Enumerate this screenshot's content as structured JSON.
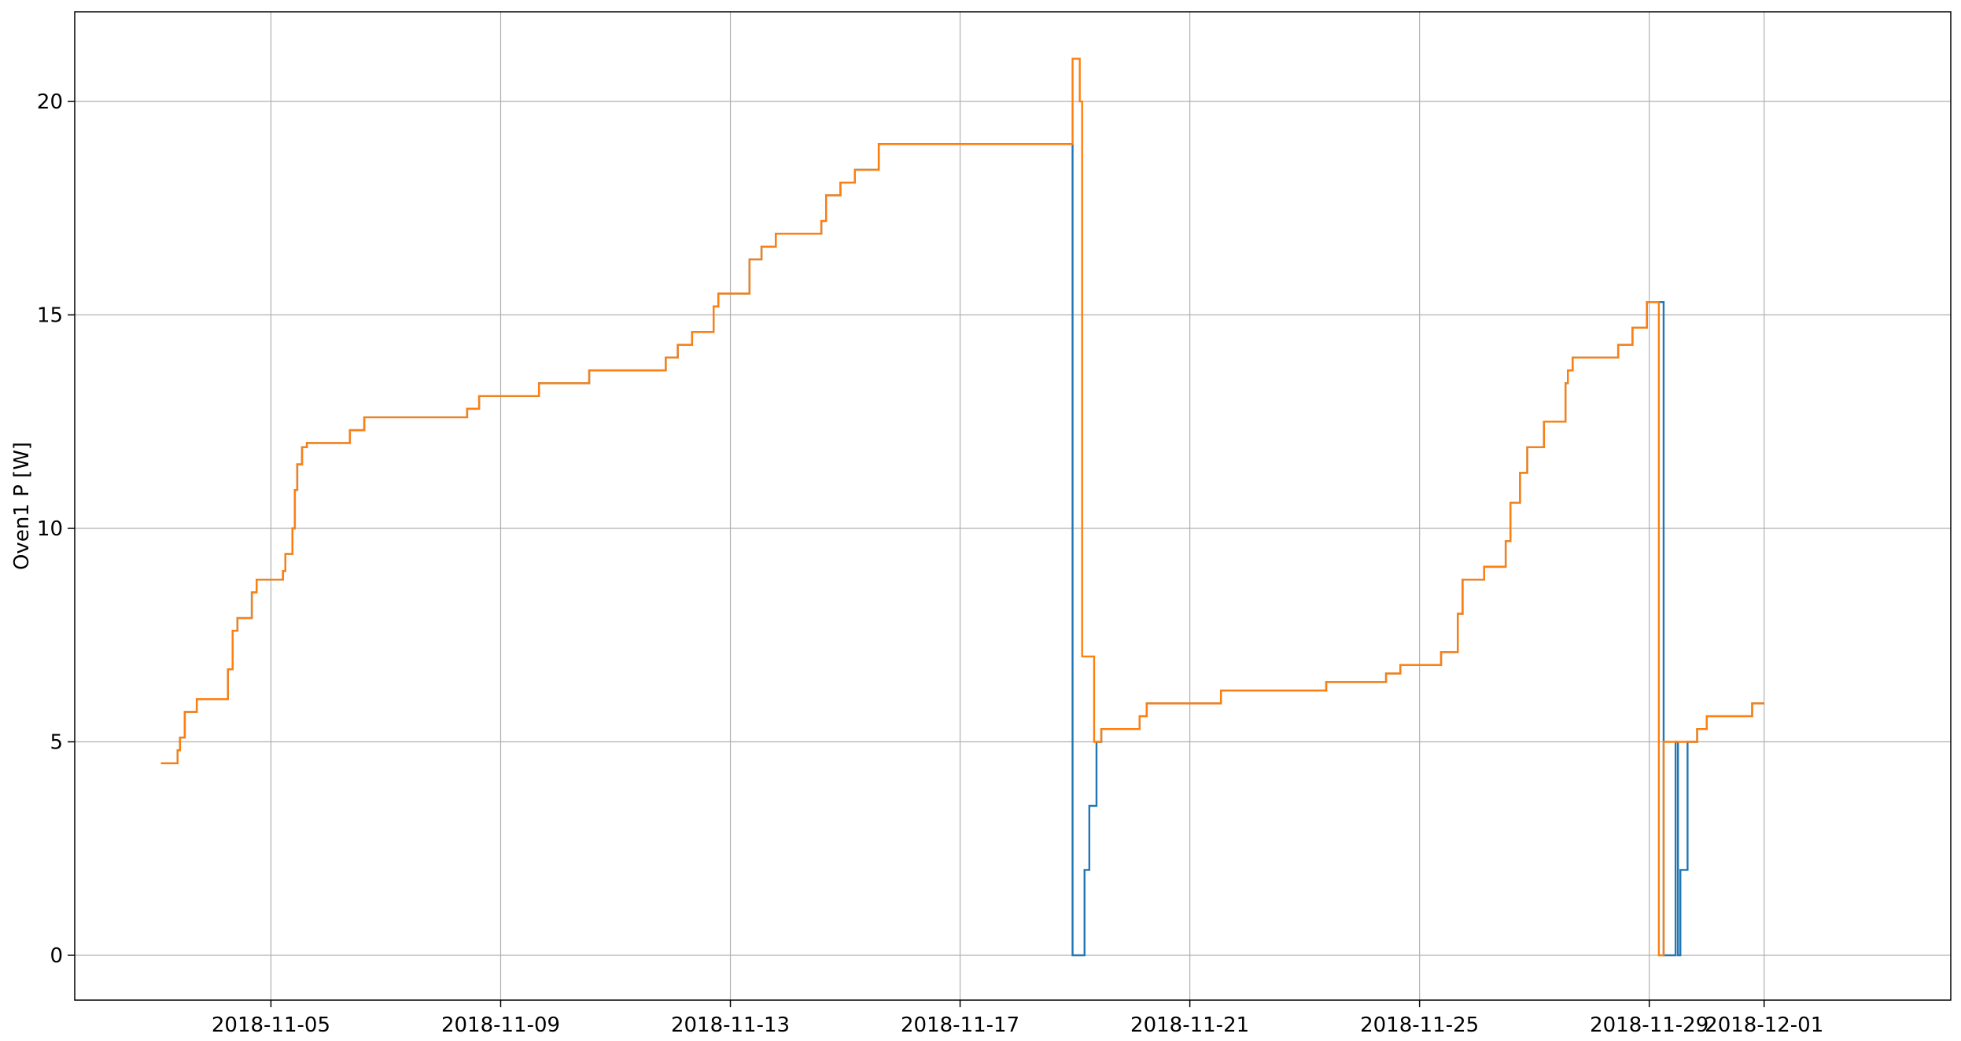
{
  "chart_data": {
    "type": "line",
    "title": "",
    "xlabel": "",
    "ylabel": "Oven1 P [W]",
    "x_axis_type": "date",
    "xlim": [
      "2018-11-01T14:00",
      "2018-12-04T06:00"
    ],
    "ylim": [
      -1.05,
      22.1
    ],
    "grid": true,
    "x_ticks": [
      "2018-11-05",
      "2018-11-09",
      "2018-11-13",
      "2018-11-17",
      "2018-11-21",
      "2018-11-25",
      "2018-11-29",
      "2018-12-01"
    ],
    "y_ticks": [
      0,
      5,
      10,
      15,
      20
    ],
    "series": [
      {
        "color": "#1f77b4",
        "step": true,
        "points": [
          [
            "2018-11-03T02:00",
            4.5
          ],
          [
            "2018-11-03T09:00",
            4.8
          ],
          [
            "2018-11-03T10:00",
            5.1
          ],
          [
            "2018-11-03T12:00",
            5.7
          ],
          [
            "2018-11-03T17:00",
            6.0
          ],
          [
            "2018-11-04T06:00",
            6.7
          ],
          [
            "2018-11-04T08:00",
            7.6
          ],
          [
            "2018-11-04T10:00",
            7.9
          ],
          [
            "2018-11-04T16:00",
            8.5
          ],
          [
            "2018-11-04T18:00",
            8.8
          ],
          [
            "2018-11-05T05:00",
            9.0
          ],
          [
            "2018-11-05T06:00",
            9.4
          ],
          [
            "2018-11-05T09:00",
            10.0
          ],
          [
            "2018-11-05T10:00",
            10.9
          ],
          [
            "2018-11-05T11:00",
            11.5
          ],
          [
            "2018-11-05T13:00",
            11.9
          ],
          [
            "2018-11-05T15:00",
            12.0
          ],
          [
            "2018-11-06T09:00",
            12.3
          ],
          [
            "2018-11-06T15:00",
            12.6
          ],
          [
            "2018-11-08T10:00",
            12.8
          ],
          [
            "2018-11-08T15:00",
            13.1
          ],
          [
            "2018-11-09T16:00",
            13.4
          ],
          [
            "2018-11-10T13:00",
            13.7
          ],
          [
            "2018-11-11T21:00",
            14.0
          ],
          [
            "2018-11-12T02:00",
            14.3
          ],
          [
            "2018-11-12T08:00",
            14.6
          ],
          [
            "2018-11-12T17:00",
            15.2
          ],
          [
            "2018-11-12T19:00",
            15.5
          ],
          [
            "2018-11-13T08:00",
            16.3
          ],
          [
            "2018-11-13T13:00",
            16.6
          ],
          [
            "2018-11-13T19:00",
            16.9
          ],
          [
            "2018-11-14T14:00",
            17.2
          ],
          [
            "2018-11-14T16:00",
            17.8
          ],
          [
            "2018-11-14T22:00",
            18.1
          ],
          [
            "2018-11-15T04:00",
            18.4
          ],
          [
            "2018-11-15T14:00",
            19.0
          ],
          [
            "2018-11-18T23:00",
            0.0
          ],
          [
            "2018-11-19T04:00",
            2.0
          ],
          [
            "2018-11-19T06:00",
            3.5
          ],
          [
            "2018-11-19T09:00",
            5.0
          ],
          [
            "2018-11-19T11:00",
            5.3
          ],
          [
            "2018-11-20T03:00",
            5.6
          ],
          [
            "2018-11-20T06:00",
            5.9
          ],
          [
            "2018-11-21T13:00",
            6.2
          ],
          [
            "2018-11-23T09:00",
            6.4
          ],
          [
            "2018-11-24T10:00",
            6.6
          ],
          [
            "2018-11-24T16:00",
            6.8
          ],
          [
            "2018-11-25T09:00",
            7.1
          ],
          [
            "2018-11-25T16:00",
            8.0
          ],
          [
            "2018-11-25T18:00",
            8.8
          ],
          [
            "2018-11-26T03:00",
            9.1
          ],
          [
            "2018-11-26T12:00",
            9.7
          ],
          [
            "2018-11-26T14:00",
            10.6
          ],
          [
            "2018-11-26T18:00",
            11.3
          ],
          [
            "2018-11-26T21:00",
            11.9
          ],
          [
            "2018-11-27T04:00",
            12.5
          ],
          [
            "2018-11-27T13:00",
            13.4
          ],
          [
            "2018-11-27T14:00",
            13.7
          ],
          [
            "2018-11-27T16:00",
            14.0
          ],
          [
            "2018-11-28T11:00",
            14.3
          ],
          [
            "2018-11-28T17:00",
            14.7
          ],
          [
            "2018-11-28T23:00",
            15.3
          ],
          [
            "2018-11-29T06:00",
            0.0
          ],
          [
            "2018-11-29T11:00",
            5.0
          ],
          [
            "2018-11-29T12:00",
            0.0
          ],
          [
            "2018-11-29T13:00",
            2.0
          ],
          [
            "2018-11-29T16:00",
            5.0
          ],
          [
            "2018-11-29T20:00",
            5.3
          ],
          [
            "2018-11-30T00:00",
            5.6
          ],
          [
            "2018-11-30T19:00",
            5.9
          ],
          [
            "2018-12-01T00:00",
            5.9
          ]
        ]
      },
      {
        "color": "#ff7f0e",
        "step": true,
        "points": [
          [
            "2018-11-03T02:00",
            4.5
          ],
          [
            "2018-11-03T09:00",
            4.8
          ],
          [
            "2018-11-03T10:00",
            5.1
          ],
          [
            "2018-11-03T12:00",
            5.7
          ],
          [
            "2018-11-03T17:00",
            6.0
          ],
          [
            "2018-11-04T06:00",
            6.7
          ],
          [
            "2018-11-04T08:00",
            7.6
          ],
          [
            "2018-11-04T10:00",
            7.9
          ],
          [
            "2018-11-04T16:00",
            8.5
          ],
          [
            "2018-11-04T18:00",
            8.8
          ],
          [
            "2018-11-05T05:00",
            9.0
          ],
          [
            "2018-11-05T06:00",
            9.4
          ],
          [
            "2018-11-05T09:00",
            10.0
          ],
          [
            "2018-11-05T10:00",
            10.9
          ],
          [
            "2018-11-05T11:00",
            11.5
          ],
          [
            "2018-11-05T13:00",
            11.9
          ],
          [
            "2018-11-05T15:00",
            12.0
          ],
          [
            "2018-11-06T09:00",
            12.3
          ],
          [
            "2018-11-06T15:00",
            12.6
          ],
          [
            "2018-11-08T10:00",
            12.8
          ],
          [
            "2018-11-08T15:00",
            13.1
          ],
          [
            "2018-11-09T16:00",
            13.4
          ],
          [
            "2018-11-10T13:00",
            13.7
          ],
          [
            "2018-11-11T21:00",
            14.0
          ],
          [
            "2018-11-12T02:00",
            14.3
          ],
          [
            "2018-11-12T08:00",
            14.6
          ],
          [
            "2018-11-12T17:00",
            15.2
          ],
          [
            "2018-11-12T19:00",
            15.5
          ],
          [
            "2018-11-13T08:00",
            16.3
          ],
          [
            "2018-11-13T13:00",
            16.6
          ],
          [
            "2018-11-13T19:00",
            16.9
          ],
          [
            "2018-11-14T14:00",
            17.2
          ],
          [
            "2018-11-14T16:00",
            17.8
          ],
          [
            "2018-11-14T22:00",
            18.1
          ],
          [
            "2018-11-15T04:00",
            18.4
          ],
          [
            "2018-11-15T14:00",
            19.0
          ],
          [
            "2018-11-18T23:00",
            21.0
          ],
          [
            "2018-11-19T02:00",
            20.0
          ],
          [
            "2018-11-19T03:00",
            7.0
          ],
          [
            "2018-11-19T08:00",
            5.0
          ],
          [
            "2018-11-19T11:00",
            5.3
          ],
          [
            "2018-11-20T03:00",
            5.6
          ],
          [
            "2018-11-20T06:00",
            5.9
          ],
          [
            "2018-11-21T13:00",
            6.2
          ],
          [
            "2018-11-23T09:00",
            6.4
          ],
          [
            "2018-11-24T10:00",
            6.6
          ],
          [
            "2018-11-24T16:00",
            6.8
          ],
          [
            "2018-11-25T09:00",
            7.1
          ],
          [
            "2018-11-25T16:00",
            8.0
          ],
          [
            "2018-11-25T18:00",
            8.8
          ],
          [
            "2018-11-26T03:00",
            9.1
          ],
          [
            "2018-11-26T12:00",
            9.7
          ],
          [
            "2018-11-26T14:00",
            10.6
          ],
          [
            "2018-11-26T18:00",
            11.3
          ],
          [
            "2018-11-26T21:00",
            11.9
          ],
          [
            "2018-11-27T04:00",
            12.5
          ],
          [
            "2018-11-27T13:00",
            13.4
          ],
          [
            "2018-11-27T14:00",
            13.7
          ],
          [
            "2018-11-27T16:00",
            14.0
          ],
          [
            "2018-11-28T11:00",
            14.3
          ],
          [
            "2018-11-28T17:00",
            14.7
          ],
          [
            "2018-11-28T23:00",
            15.3
          ],
          [
            "2018-11-29T04:00",
            0.0
          ],
          [
            "2018-11-29T06:00",
            5.0
          ],
          [
            "2018-11-29T14:00",
            5.0
          ],
          [
            "2018-11-29T20:00",
            5.3
          ],
          [
            "2018-11-30T00:00",
            5.6
          ],
          [
            "2018-11-30T19:00",
            5.9
          ],
          [
            "2018-12-01T00:00",
            5.9
          ]
        ]
      }
    ]
  }
}
